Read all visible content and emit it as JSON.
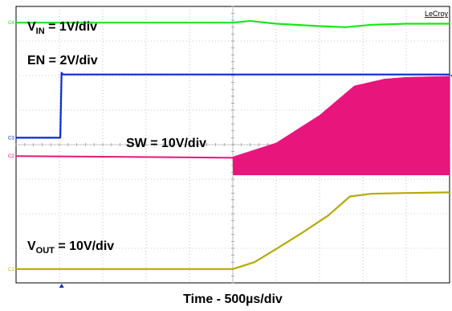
{
  "chart_data": {
    "type": "line",
    "title": "",
    "xlabel": "Time - 500µs/div",
    "x_unit_per_div": "500µs",
    "divisions": {
      "x": 10,
      "y": 8
    },
    "grid": true,
    "x_range_div": [
      0,
      10
    ],
    "y_range_div": [
      0,
      8
    ],
    "brand": "LeCroy",
    "series": [
      {
        "name": "V_IN = 1V/div",
        "label_main": "V",
        "label_sub": "IN",
        "label_rest": " = 1V/div",
        "channel": "C4",
        "color": "#19e619",
        "x": [
          0,
          5,
          5.4,
          6,
          7,
          7.6,
          8.2,
          9,
          10
        ],
        "y": [
          7.53,
          7.53,
          7.58,
          7.5,
          7.43,
          7.4,
          7.47,
          7.5,
          7.5
        ]
      },
      {
        "name": "EN = 2V/div",
        "label_main": "EN",
        "label_rest": " = 2V/div",
        "channel": "C3",
        "color": "#0a2bd6",
        "x": [
          0,
          1.02,
          1.05,
          1.08,
          10
        ],
        "y": [
          4.2,
          4.2,
          6.08,
          6.03,
          6.03
        ]
      },
      {
        "name": "SW = 10V/div",
        "label_main": "SW",
        "label_rest": " = 10V/div",
        "channel": "C2",
        "color": "#e8157d",
        "x": [
          0,
          5,
          5.01,
          6,
          7,
          7.8,
          8.5,
          9,
          10
        ],
        "y_low": [
          3.67,
          3.62,
          3.12,
          3.12,
          3.12,
          3.12,
          3.12,
          3.12,
          3.12
        ],
        "y_high": [
          3.67,
          3.62,
          3.65,
          4.05,
          4.85,
          5.7,
          5.9,
          5.95,
          5.98
        ],
        "switching_start_x": 5
      },
      {
        "name": "V_OUT = 10V/div",
        "label_main": "V",
        "label_sub": "OUT",
        "label_rest": " = 10V/div",
        "channel": "C1",
        "color": "#b5aa08",
        "x": [
          0,
          5,
          5.5,
          6,
          6.6,
          7.2,
          7.7,
          8.2,
          9,
          10
        ],
        "y": [
          0.4,
          0.4,
          0.6,
          0.98,
          1.45,
          1.95,
          2.5,
          2.58,
          2.6,
          2.62
        ]
      }
    ]
  }
}
